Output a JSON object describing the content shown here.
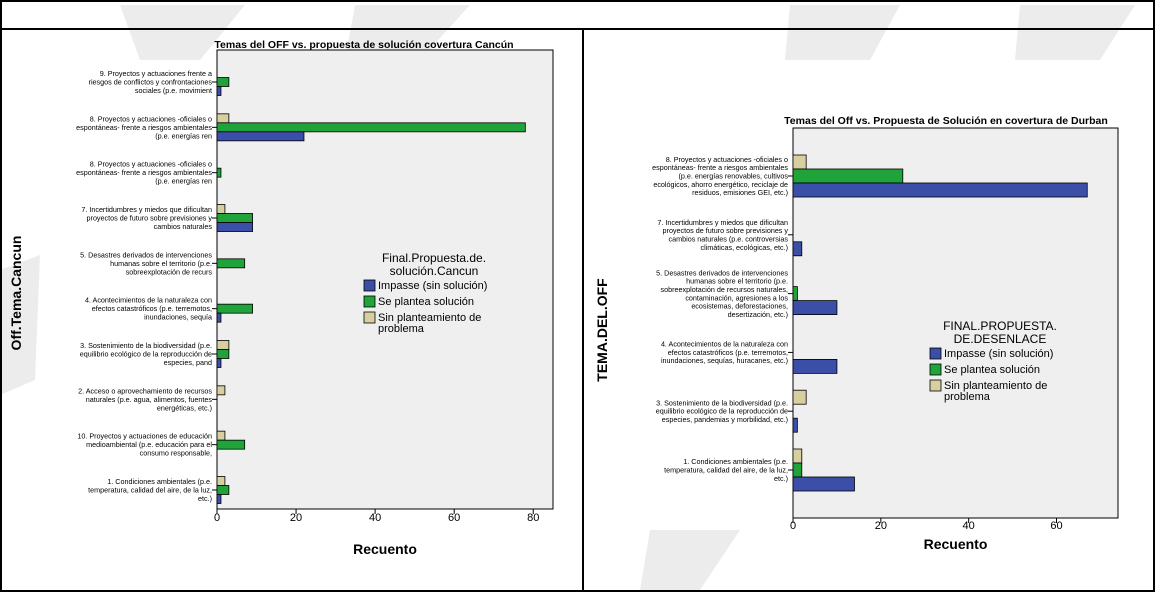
{
  "colors": {
    "impasse": "#3c4fa8",
    "plantea": "#1fa33a",
    "sin": "#d8cfa0",
    "plot_bg": "#efefef",
    "watermark": "#ececec"
  },
  "chart_data": [
    {
      "type": "bar",
      "orientation": "horizontal",
      "title": "Temas del OFF vs. propuesta de solución covertura Cancún",
      "xlabel": "Recuento",
      "ylabel": "Off.Tema.Cancun",
      "xlim": [
        0,
        85
      ],
      "xticks": [
        0,
        20,
        40,
        60,
        80
      ],
      "grid": false,
      "legend_title": [
        "Final.Propuesta.de.",
        "solución.Cancun"
      ],
      "legend_position": "right",
      "categories": [
        {
          "lines": [
            "9. Proyectos y actuaciones frente a",
            "riesgos de conflictos y confrontaciones",
            "sociales (p.e. movimient"
          ]
        },
        {
          "lines": [
            "8. Proyectos y actuaciones -oficiales o",
            "espontáneas- frente a riesgos ambientales",
            "(p.e. energías ren"
          ]
        },
        {
          "lines": [
            "8. Proyectos y actuaciones -oficiales o",
            "espontáneas- frente a riesgos ambientales",
            "(p.e. energías ren"
          ]
        },
        {
          "lines": [
            "7. Incertidumbres y miedos que dificultan",
            "proyectos de futuro sobre previsiones y",
            "cambios naturales"
          ]
        },
        {
          "lines": [
            "5. Desastres derivados de intervenciones",
            "humanas sobre el territorio (p.e.",
            "sobreexplotación de recurs"
          ]
        },
        {
          "lines": [
            "4. Acontecimientos de la naturaleza con",
            "efectos catastróficos (p.e. terremotos,",
            "inundaciones, sequía"
          ]
        },
        {
          "lines": [
            "3. Sostenimiento de la biodiversidad (p.e.",
            "equilibrio ecológico de la reproducción de",
            "especies, pand"
          ]
        },
        {
          "lines": [
            "2. Acceso o aprovechamiento de recursos",
            "naturales (p.e. agua, alimentos, fuentes",
            "energéticas, etc.)"
          ]
        },
        {
          "lines": [
            "10. Proyectos y actuaciones de educación",
            "medioambiental (p.e. educación para el",
            "consumo responsable,"
          ]
        },
        {
          "lines": [
            "1. Condiciones ambientales (p.e.",
            "temperatura, calidad del aire, de la luz,",
            "etc.)"
          ]
        }
      ],
      "series": [
        {
          "name": "Sin planteamiento de problema",
          "key": "sin",
          "legend_lines": [
            "Sin planteamiento de",
            "problema"
          ],
          "values": [
            0,
            3,
            0,
            2,
            0,
            0,
            3,
            2,
            2,
            2
          ]
        },
        {
          "name": "Se plantea solución",
          "key": "plantea",
          "legend_lines": [
            "Se plantea solución"
          ],
          "values": [
            3,
            78,
            1,
            9,
            7,
            9,
            3,
            0,
            7,
            3
          ]
        },
        {
          "name": "Impasse (sin solución)",
          "key": "impasse",
          "legend_lines": [
            "Impasse (sin solución)"
          ],
          "values": [
            1,
            22,
            0,
            9,
            0,
            1,
            1,
            0,
            0,
            1
          ]
        }
      ]
    },
    {
      "type": "bar",
      "orientation": "horizontal",
      "title": "Temas del Off vs. Propuesta de Solución en covertura de Durban",
      "xlabel": "Recuento",
      "ylabel": "TEMA.DEL.OFF",
      "xlim": [
        0,
        74
      ],
      "xticks": [
        0,
        20,
        40,
        60
      ],
      "grid": false,
      "legend_title": [
        "FINAL.PROPUESTA.",
        "DE.DESENLACE"
      ],
      "legend_position": "right",
      "categories": [
        {
          "lines": [
            "8. Proyectos y actuaciones -oficiales o",
            "espontáneas- frente a riesgos ambientales",
            "(p.e. energías renovables, cultivos",
            "ecológicos, ahorro energético, reciclaje de",
            "residuos, emisiones GEI, etc.)"
          ]
        },
        {
          "lines": [
            "7. Incertidumbres y miedos que dificultan",
            "proyectos de futuro sobre previsiones y",
            "cambios naturales (p.e. controversias",
            "climáticas, ecológicas, etc.)"
          ]
        },
        {
          "lines": [
            "5. Desastres derivados de intervenciones",
            "humanas sobre el territorio (p.e.",
            "sobreexplotación de recursos naturales,",
            "contaminación, agresiones a los",
            "ecosistemas, deforestaciones,",
            "desertización, etc.)"
          ]
        },
        {
          "lines": [
            "4. Acontecimientos de la naturaleza con",
            "efectos catastróficos (p.e. terremotos,",
            "inundaciones, sequías, huracanes, etc.)"
          ]
        },
        {
          "lines": [
            "3. Sostenimiento de la biodiversidad (p.e.",
            "equilibrio ecológico de la reproducción de",
            "especies, pandemias y morbilidad, etc.)"
          ]
        },
        {
          "lines": [
            "1. Condiciones ambientales (p.e.",
            "temperatura, calidad del aire, de la luz,",
            "etc.)"
          ]
        }
      ],
      "series": [
        {
          "name": "Sin planteamiento de problema",
          "key": "sin",
          "legend_lines": [
            "Sin planteamiento de",
            "problema"
          ],
          "values": [
            3,
            0,
            0,
            0,
            3,
            2
          ]
        },
        {
          "name": "Se plantea solución",
          "key": "plantea",
          "legend_lines": [
            "Se plantea solución"
          ],
          "values": [
            25,
            0,
            1,
            0,
            0,
            2
          ]
        },
        {
          "name": "Impasse (sin solución)",
          "key": "impasse",
          "legend_lines": [
            "Impasse (sin solución)"
          ],
          "values": [
            67,
            2,
            10,
            10,
            1,
            14
          ]
        }
      ]
    }
  ]
}
